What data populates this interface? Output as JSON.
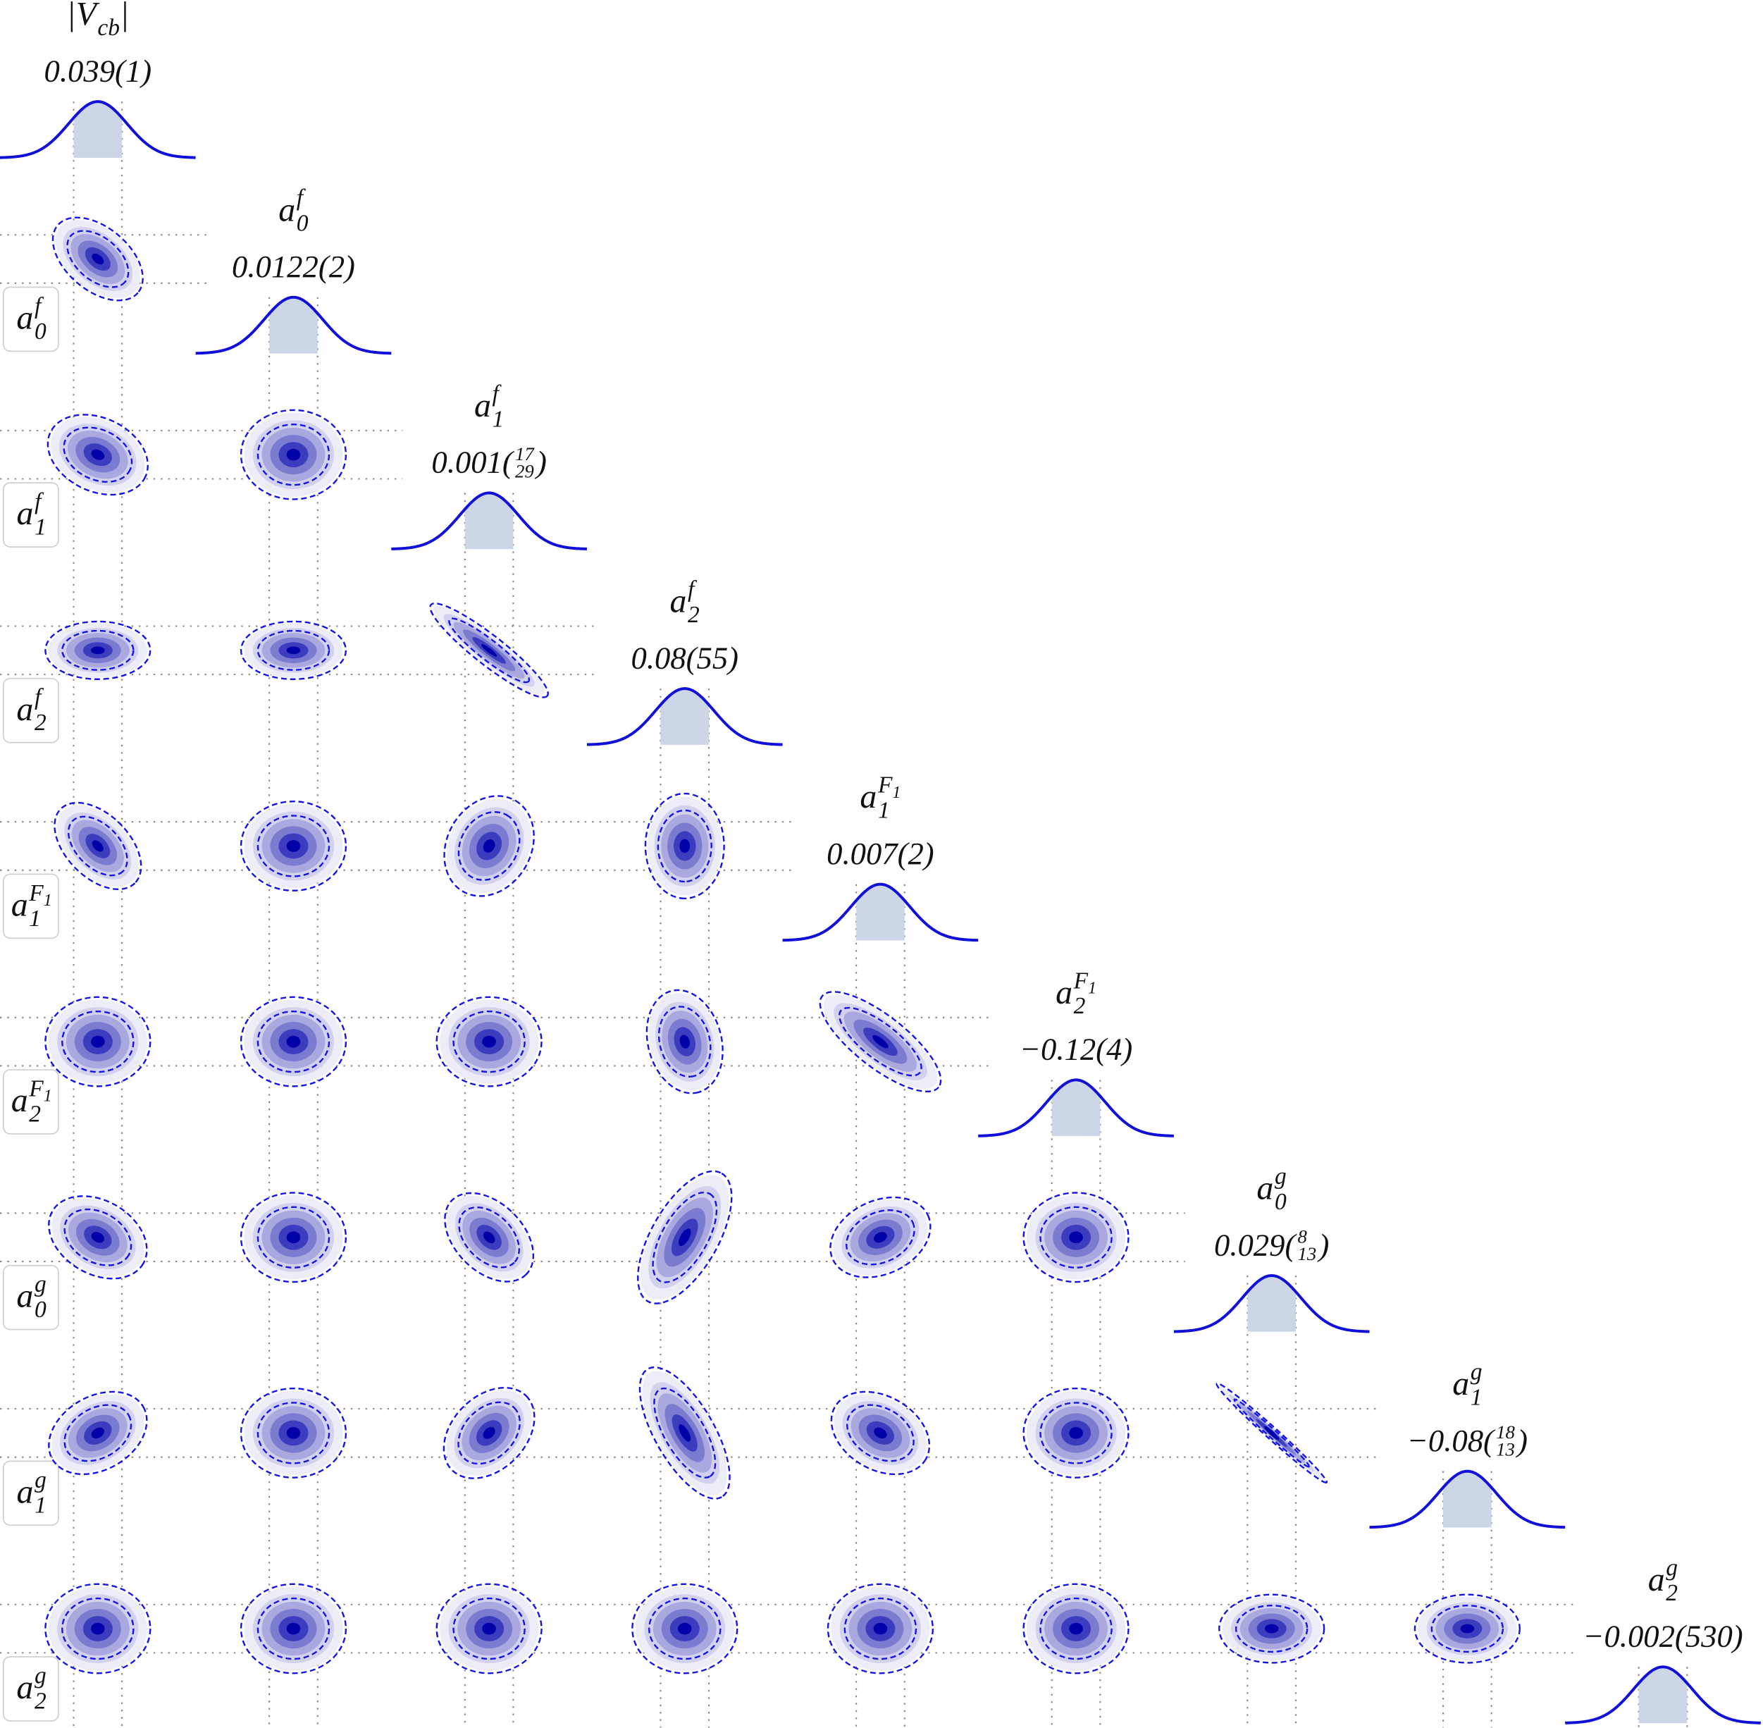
{
  "params": [
    {
      "label": [
        {
          "text": "|V"
        },
        {
          "text": "cb",
          "pos": "sub"
        },
        {
          "text": "|"
        }
      ],
      "value": {
        "before": "0.039(1)"
      }
    },
    {
      "label": [
        {
          "text": "a"
        },
        {
          "text": "f",
          "pos": "sup"
        },
        {
          "text": "0",
          "pos": "sub"
        }
      ],
      "value": {
        "before": "0.0122(2)"
      }
    },
    {
      "label": [
        {
          "text": "a"
        },
        {
          "text": "f",
          "pos": "sup"
        },
        {
          "text": "1",
          "pos": "sub"
        }
      ],
      "value": {
        "before": "0.001(",
        "upper": "17",
        "lower": "29",
        "after": ")"
      }
    },
    {
      "label": [
        {
          "text": "a"
        },
        {
          "text": "f",
          "pos": "sup"
        },
        {
          "text": "2",
          "pos": "sub"
        }
      ],
      "value": {
        "before": "0.08(55)"
      }
    },
    {
      "label": [
        {
          "text": "a"
        },
        {
          "text": "F",
          "pos": "sup"
        },
        {
          "text": "1",
          "pos": "supsub"
        },
        {
          "text": "1",
          "pos": "sub"
        }
      ],
      "value": {
        "before": "0.007(2)"
      }
    },
    {
      "label": [
        {
          "text": "a"
        },
        {
          "text": "F",
          "pos": "sup"
        },
        {
          "text": "1",
          "pos": "supsub"
        },
        {
          "text": "2",
          "pos": "sub"
        }
      ],
      "value": {
        "before": "−0.12(4)"
      }
    },
    {
      "label": [
        {
          "text": "a"
        },
        {
          "text": "g",
          "pos": "sup"
        },
        {
          "text": "0",
          "pos": "sub"
        }
      ],
      "value": {
        "before": "0.029(",
        "upper": "8",
        "lower": "13",
        "after": ")"
      }
    },
    {
      "label": [
        {
          "text": "a"
        },
        {
          "text": "g",
          "pos": "sup"
        },
        {
          "text": "1",
          "pos": "sub"
        }
      ],
      "value": {
        "before": "−0.08(",
        "upper": "18",
        "lower": "13",
        "after": ")"
      }
    },
    {
      "label": [
        {
          "text": "a"
        },
        {
          "text": "g",
          "pos": "sup"
        },
        {
          "text": "2",
          "pos": "sub"
        }
      ],
      "value": {
        "before": "−0.002(530)"
      }
    }
  ]
}
